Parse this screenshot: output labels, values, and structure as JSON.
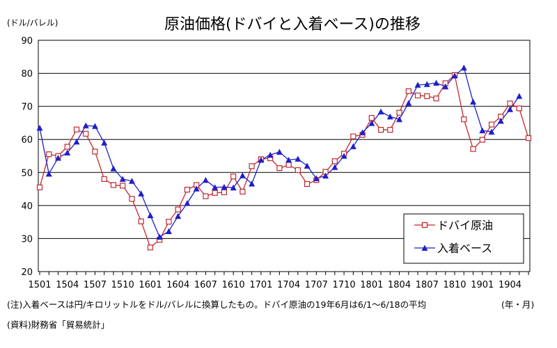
{
  "chart_data": {
    "type": "line",
    "title": "原油価格(ドバイと入着ベース)の推移",
    "ylabel": "(ドル/バレル)",
    "xlabel": "(年・月)",
    "ylim": [
      20,
      90
    ],
    "yticks": [
      20,
      30,
      40,
      50,
      60,
      70,
      80,
      90
    ],
    "grid": true,
    "legend": "bottom-right",
    "x_tick_labels": [
      "1501",
      "1504",
      "1507",
      "1510",
      "1601",
      "1604",
      "1607",
      "1610",
      "1701",
      "1704",
      "1707",
      "1710",
      "1801",
      "1804",
      "1807",
      "1810",
      "1901",
      "1904"
    ],
    "x": [
      "1501",
      "1502",
      "1503",
      "1504",
      "1505",
      "1506",
      "1507",
      "1508",
      "1509",
      "1510",
      "1511",
      "1512",
      "1601",
      "1602",
      "1603",
      "1604",
      "1605",
      "1606",
      "1607",
      "1608",
      "1609",
      "1610",
      "1611",
      "1612",
      "1701",
      "1702",
      "1703",
      "1704",
      "1705",
      "1706",
      "1707",
      "1708",
      "1709",
      "1710",
      "1711",
      "1712",
      "1801",
      "1802",
      "1803",
      "1804",
      "1805",
      "1806",
      "1807",
      "1808",
      "1809",
      "1810",
      "1811",
      "1812",
      "1901",
      "1902",
      "1903",
      "1904",
      "1905",
      "1906"
    ],
    "series": [
      {
        "name": "ドバイ原油",
        "color": "#c0282d",
        "marker": "open-square",
        "values": [
          45.5,
          55.5,
          55.0,
          57.8,
          63.0,
          61.7,
          56.3,
          48.0,
          46.2,
          46.0,
          42.0,
          35.2,
          27.3,
          29.6,
          35.1,
          38.8,
          44.8,
          46.2,
          42.8,
          43.8,
          44.0,
          48.8,
          44.2,
          51.9,
          54.0,
          54.3,
          51.3,
          52.3,
          50.7,
          46.5,
          47.7,
          50.2,
          53.4,
          55.7,
          60.9,
          61.4,
          66.5,
          62.9,
          62.9,
          68.1,
          74.6,
          73.3,
          73.1,
          72.4,
          77.0,
          79.5,
          66.1,
          57.1,
          59.9,
          64.5,
          66.9,
          70.9,
          69.4,
          60.4
        ]
      },
      {
        "name": "入着ベース",
        "color": "#1f1fc8",
        "marker": "filled-triangle",
        "values": [
          63.5,
          49.6,
          54.4,
          56.0,
          59.3,
          64.2,
          64.0,
          59.0,
          51.2,
          48.0,
          47.4,
          43.6,
          37.0,
          30.5,
          32.2,
          36.8,
          40.7,
          45.1,
          47.7,
          45.5,
          45.6,
          45.4,
          49.1,
          46.6,
          53.8,
          55.3,
          56.2,
          53.8,
          54.1,
          52.0,
          48.2,
          49.0,
          51.6,
          55.0,
          57.9,
          62.1,
          64.9,
          68.4,
          66.9,
          66.1,
          71.0,
          76.5,
          76.7,
          77.1,
          76.0,
          79.3,
          81.7,
          71.4,
          62.7,
          62.3,
          65.6,
          69.1,
          73.1,
          null
        ]
      }
    ]
  },
  "notes": {
    "footnote": "(注)入着ベースは円/キロリットルをドル/バレルに換算したもの。ドバイ原油の19年6月は6/1～6/18の平均",
    "source": "(資料)財務省「貿易統計」"
  }
}
